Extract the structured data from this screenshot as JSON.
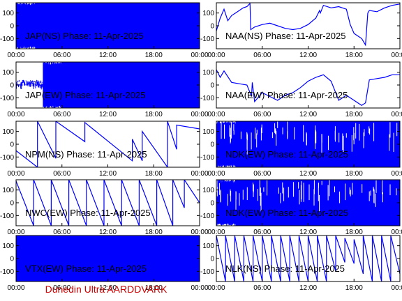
{
  "footer": "Dunedin Ultra AARDDVARK",
  "colors": {
    "trace": "#0000ff",
    "axis": "#000000",
    "footer": "#cc0000"
  },
  "chart_data": [
    {
      "type": "line",
      "title": "JAP(NS) Phase: 11-Apr-2025",
      "style": "dense",
      "xlim": [
        0,
        24
      ],
      "ylim": [
        -180,
        180
      ],
      "xticks": [
        "00:00",
        "06:00",
        "12:00",
        "18:00",
        "00:00"
      ],
      "yticks": [
        "100",
        "0",
        "-100"
      ],
      "y_tick_values": [
        100,
        0,
        -100
      ],
      "series": [
        {
          "x": [
            0,
            24
          ],
          "y": [
            -180,
            180
          ],
          "fill": "full"
        }
      ]
    },
    {
      "type": "line",
      "title": "NAA(NS) Phase: 11-Apr-2025",
      "style": "line",
      "xlim": [
        0,
        24
      ],
      "ylim": [
        -180,
        180
      ],
      "xticks": [
        "00:00",
        "06:00",
        "12:00",
        "18:00",
        "00:00"
      ],
      "yticks": [
        "100",
        "0",
        "-100"
      ],
      "y_tick_values": [
        100,
        0,
        -100
      ],
      "series": [
        {
          "x": [
            0,
            0.5,
            1,
            1.5,
            2,
            2.5,
            3,
            3.5,
            4,
            4.4,
            4.5,
            5,
            6,
            7,
            8,
            9,
            10,
            11,
            12,
            13,
            13.5,
            13.6,
            14,
            15,
            16,
            17,
            17.5,
            18,
            19,
            19.5,
            19.8,
            20,
            21,
            22,
            23,
            24
          ],
          "y": [
            -40,
            60,
            130,
            40,
            80,
            100,
            120,
            140,
            150,
            175,
            -30,
            -10,
            10,
            20,
            0,
            -20,
            -30,
            -20,
            10,
            60,
            120,
            100,
            160,
            140,
            150,
            130,
            10,
            -60,
            -100,
            -150,
            100,
            120,
            110,
            140,
            160,
            170
          ]
        }
      ]
    },
    {
      "type": "line",
      "title": "JAP(EW) Phase: 11-Apr-2025",
      "style": "dense",
      "xlim": [
        0,
        24
      ],
      "ylim": [
        -180,
        180
      ],
      "xticks": [
        "00:00",
        "06:00",
        "12:00",
        "18:00",
        "00:00"
      ],
      "yticks": [
        "100",
        "0",
        "-100"
      ],
      "y_tick_values": [
        100,
        0,
        -100
      ],
      "series": [
        {
          "x": [
            0,
            24
          ],
          "y": [
            -180,
            180
          ],
          "fill": "from-morning"
        }
      ]
    },
    {
      "type": "line",
      "title": "NAA(EW) Phase: 11-Apr-2025",
      "style": "line",
      "xlim": [
        0,
        24
      ],
      "ylim": [
        -180,
        180
      ],
      "xticks": [
        "00:00",
        "06:00",
        "12:00",
        "18:00",
        "00:00"
      ],
      "yticks": [
        "100",
        "0",
        "-100"
      ],
      "y_tick_values": [
        100,
        0,
        -100
      ],
      "series": [
        {
          "x": [
            0,
            0.5,
            1,
            2,
            3,
            4,
            4.6,
            4.7,
            5,
            6,
            7,
            8,
            9,
            10,
            11,
            12,
            13,
            14,
            15,
            16,
            17,
            18,
            19,
            19.5,
            20,
            21,
            22,
            23,
            24
          ],
          "y": [
            120,
            60,
            110,
            20,
            10,
            0,
            -90,
            20,
            -130,
            -60,
            -90,
            -120,
            -80,
            -60,
            -20,
            30,
            60,
            80,
            30,
            -120,
            -80,
            -120,
            -160,
            -140,
            40,
            50,
            60,
            80,
            80
          ]
        }
      ]
    },
    {
      "type": "line",
      "title": "NPM(NS) Phase: 11-Apr-2025",
      "style": "sawtooth",
      "xlim": [
        0,
        24
      ],
      "ylim": [
        -180,
        180
      ],
      "xticks": [
        "00:00",
        "06:00",
        "12:00",
        "18:00",
        "00:00"
      ],
      "yticks": [
        "100",
        "0",
        "-100"
      ],
      "y_tick_values": [
        100,
        0,
        -100
      ],
      "series": [
        {
          "x": [
            0,
            2.8,
            2.8,
            5.2,
            5.2,
            9,
            9,
            15.2,
            15.2,
            16.5,
            16.5,
            19.8,
            19.8,
            21,
            21,
            24
          ],
          "y": [
            -50,
            -180,
            180,
            -110,
            180,
            20,
            170,
            -130,
            40,
            -130,
            100,
            -180,
            180,
            -40,
            150,
            120
          ]
        }
      ]
    },
    {
      "type": "line",
      "title": "NDK(EW) Phase: 11-Apr-2025",
      "style": "dense",
      "xlim": [
        0,
        24
      ],
      "ylim": [
        -180,
        180
      ],
      "xticks": [
        "00:00",
        "06:00",
        "12:00",
        "18:00",
        "00:00"
      ],
      "yticks": [
        "100",
        "0",
        "-100"
      ],
      "y_tick_values": [
        100,
        0,
        -100
      ],
      "series": [
        {
          "x": [
            0,
            24
          ],
          "y": [
            -180,
            180
          ],
          "fill": "full"
        }
      ]
    },
    {
      "type": "line",
      "title": "NWC(EW) Phase: 11-Apr-2025",
      "style": "sawtooth",
      "xlim": [
        0,
        24
      ],
      "ylim": [
        -180,
        180
      ],
      "xticks": [
        "00:00",
        "06:00",
        "12:00",
        "18:00",
        "00:00"
      ],
      "yticks": [
        "100",
        "0",
        "-100"
      ],
      "y_tick_values": [
        100,
        0,
        -100
      ],
      "series": [
        {
          "x": [
            0,
            2.3,
            2.3,
            4.6,
            4.6,
            6.9,
            6.9,
            9.2,
            9.2,
            11.5,
            11.5,
            13.8,
            13.8,
            16.1,
            16.1,
            18.4,
            18.4,
            20.5,
            20.5,
            22,
            22,
            24
          ],
          "y": [
            170,
            -180,
            180,
            -180,
            180,
            -180,
            180,
            -180,
            180,
            -180,
            180,
            -180,
            180,
            -180,
            180,
            -180,
            180,
            -180,
            180,
            -40,
            180,
            0
          ]
        }
      ]
    },
    {
      "type": "line",
      "title": "NDK(EW) Phase: 11-Apr-2025",
      "style": "dense",
      "xlim": [
        0,
        24
      ],
      "ylim": [
        -180,
        180
      ],
      "xticks": [
        "00:00",
        "06:00",
        "12:00",
        "18:00",
        "00:00"
      ],
      "yticks": [
        "100",
        "0",
        "-100"
      ],
      "y_tick_values": [
        100,
        0,
        -100
      ],
      "series": [
        {
          "x": [
            0,
            24
          ],
          "y": [
            -180,
            180
          ],
          "fill": "full"
        }
      ]
    },
    {
      "type": "line",
      "title": "VTX(EW) Phase: 11-Apr-2025",
      "style": "dense",
      "xlim": [
        0,
        24
      ],
      "ylim": [
        -180,
        180
      ],
      "xticks": [
        "00:00",
        "06:00",
        "12:00",
        "18:00",
        "00:00"
      ],
      "yticks": [
        "100",
        "0",
        "-100"
      ],
      "y_tick_values": [
        100,
        0,
        -100
      ],
      "series": [
        {
          "x": [
            0,
            24
          ],
          "y": [
            -180,
            180
          ],
          "fill": "solid"
        }
      ]
    },
    {
      "type": "line",
      "title": "NLK(NS) Phase: 11-Apr-2025",
      "style": "sawtooth",
      "xlim": [
        0,
        24
      ],
      "ylim": [
        -180,
        180
      ],
      "xticks": [
        "00:00",
        "06:00",
        "12:00",
        "18:00",
        "00:00"
      ],
      "yticks": [
        "100",
        "0",
        "-100"
      ],
      "y_tick_values": [
        100,
        0,
        -100
      ],
      "series": [
        {
          "x": [
            0,
            1.2,
            1.2,
            2.4,
            2.4,
            3.6,
            3.6,
            4.8,
            4.8,
            6,
            6,
            7.2,
            7.2,
            8.4,
            8.4,
            9.6,
            9.6,
            10.8,
            10.8,
            12,
            12,
            13.2,
            13.2,
            14.4,
            14.4,
            15.6,
            15.6,
            16.8,
            16.8,
            18,
            18,
            19.2,
            19.2,
            20.4,
            20.4,
            21.6,
            21.6,
            22.8,
            22.8,
            24
          ],
          "y": [
            180,
            -180,
            180,
            -180,
            180,
            -180,
            180,
            -180,
            180,
            -180,
            180,
            -180,
            180,
            -180,
            180,
            -180,
            180,
            -180,
            180,
            -180,
            180,
            -180,
            180,
            -180,
            180,
            -100,
            180,
            -30,
            160,
            -40,
            150,
            -120,
            180,
            -180,
            180,
            -180,
            180,
            -180,
            180,
            -120
          ]
        }
      ]
    }
  ]
}
